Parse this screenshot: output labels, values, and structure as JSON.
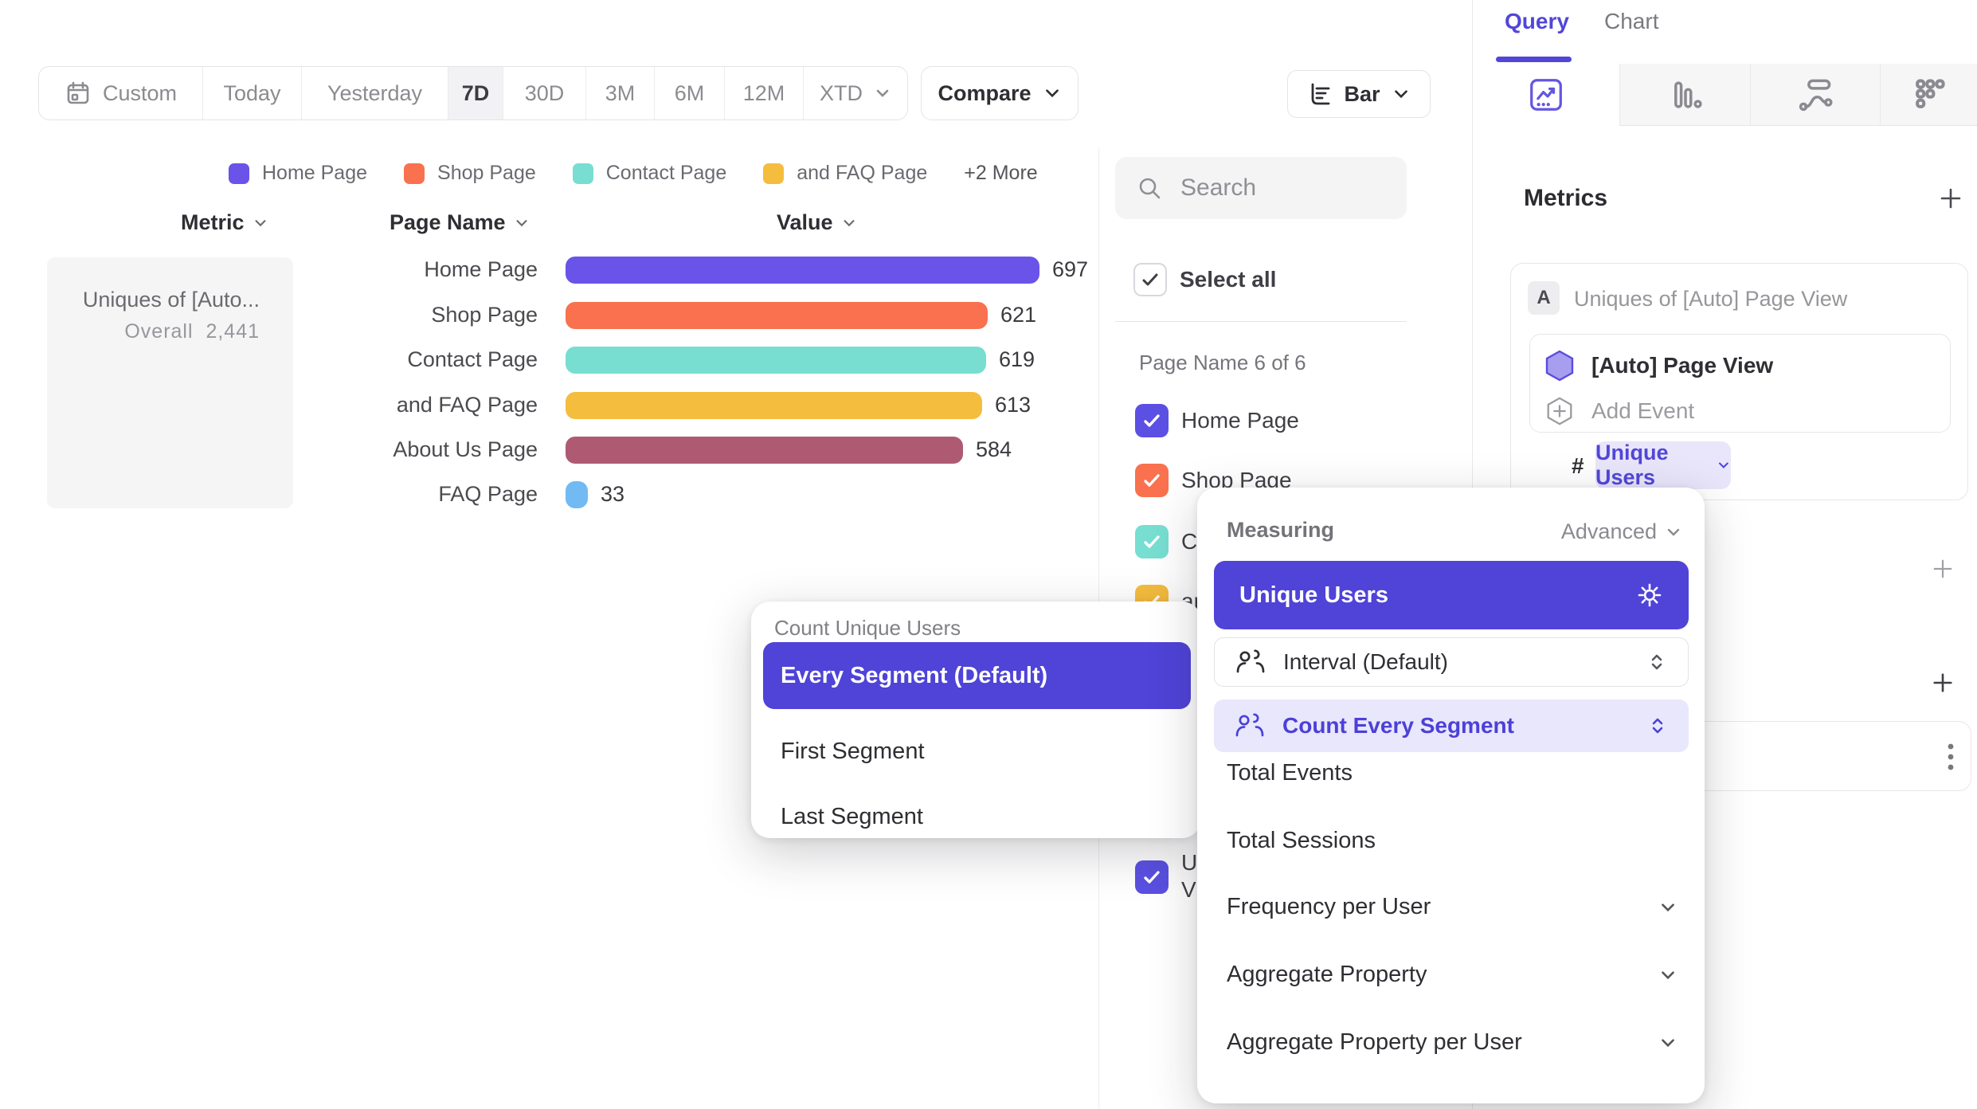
{
  "toolbar": {
    "date_ranges": [
      "Custom",
      "Today",
      "Yesterday",
      "7D",
      "30D",
      "3M",
      "6M",
      "12M",
      "XTD"
    ],
    "active_range": "7D",
    "compare_label": "Compare",
    "chart_type_label": "Bar"
  },
  "legend": {
    "items": [
      {
        "label": "Home Page",
        "color": "#6A53E9"
      },
      {
        "label": "Shop Page",
        "color": "#F9714E"
      },
      {
        "label": "Contact Page",
        "color": "#77DED1"
      },
      {
        "label": "and FAQ Page",
        "color": "#F5BD3E"
      }
    ],
    "more_label": "+2 More"
  },
  "table": {
    "headers": {
      "metric": "Metric",
      "page_name": "Page Name",
      "value": "Value"
    }
  },
  "metric_summary": {
    "name": "Uniques of [Auto...",
    "overall_label": "Overall",
    "overall_value": "2,441"
  },
  "chart_data": {
    "type": "bar",
    "orientation": "horizontal",
    "title": "Uniques of [Auto] Page View",
    "categories": [
      "Home Page",
      "Shop Page",
      "Contact Page",
      "and FAQ Page",
      "About Us Page",
      "FAQ Page"
    ],
    "values": [
      697,
      621,
      619,
      613,
      584,
      33
    ],
    "colors": [
      "#6A53E9",
      "#F9714E",
      "#77DED1",
      "#F5BD3E",
      "#AF5A73",
      "#71BAF3"
    ],
    "overall_total": 2441,
    "xlim": [
      0,
      697
    ],
    "value_labels": true,
    "grid": false,
    "legend_position": "top"
  },
  "filter_panel": {
    "search_placeholder": "Search",
    "select_all_label": "Select all",
    "group_label": "Page Name 6 of 6",
    "items": [
      {
        "label": "Home Page",
        "color": "#5B50E3",
        "checked": true
      },
      {
        "label": "Shop Page",
        "color": "#F9714E",
        "checked": true
      },
      {
        "label": "Contact Page",
        "color": "#77DED1",
        "checked": true
      },
      {
        "label": "and FAQ Page",
        "color": "#F5BD3E",
        "checked": true
      },
      {
        "label": "About Us Page",
        "color": "#AF5A73",
        "checked": true
      },
      {
        "label": "FAQ Page",
        "color": "#71BAF3",
        "checked": true
      }
    ],
    "metric_item": {
      "label": "Uniques of [Auto] Page View",
      "color": "#5B50E3",
      "checked": true
    }
  },
  "query_panel": {
    "tabs": {
      "query": "Query",
      "chart": "Chart"
    },
    "metrics_heading": "Metrics",
    "metric_card": {
      "badge": "A",
      "title": "Uniques of [Auto] Page View",
      "event_name": "[Auto] Page View",
      "add_event_label": "Add Event",
      "hash_symbol": "#",
      "measure_chip": "Unique Users"
    }
  },
  "measuring_menu": {
    "title": "Measuring",
    "advanced_label": "Advanced",
    "selected": "Unique Users",
    "interval_label": "Interval (Default)",
    "segment_label": "Count Every Segment",
    "items": [
      "Total Events",
      "Total Sessions",
      "Frequency per User",
      "Aggregate Property",
      "Aggregate Property per User"
    ],
    "expandable_items": [
      "Frequency per User",
      "Aggregate Property",
      "Aggregate Property per User"
    ],
    "accent_color": "#4F43D8"
  },
  "count_menu": {
    "title": "Count Unique Users",
    "selected": "Every Segment (Default)",
    "items": [
      "First Segment",
      "Last Segment"
    ],
    "accent_color": "#4F43D8"
  }
}
